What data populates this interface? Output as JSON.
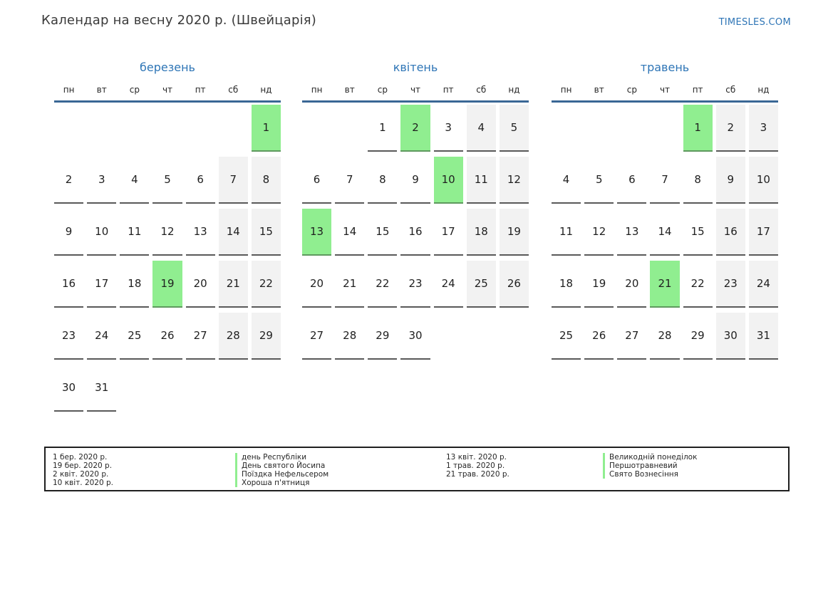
{
  "page": {
    "title": "Календар на весну 2020 р. (Швейцарія)",
    "brand": "TIMESLES.COM"
  },
  "weekdays": [
    "пн",
    "вт",
    "ср",
    "чт",
    "пт",
    "сб",
    "нд"
  ],
  "months": [
    {
      "name": "березень",
      "weeks": [
        [
          null,
          null,
          null,
          null,
          null,
          null,
          1
        ],
        [
          2,
          3,
          4,
          5,
          6,
          7,
          8
        ],
        [
          9,
          10,
          11,
          12,
          13,
          14,
          15
        ],
        [
          16,
          17,
          18,
          19,
          20,
          21,
          22
        ],
        [
          23,
          24,
          25,
          26,
          27,
          28,
          29
        ],
        [
          30,
          31,
          null,
          null,
          null,
          null,
          null
        ]
      ],
      "holidays": [
        1,
        19
      ]
    },
    {
      "name": "квітень",
      "weeks": [
        [
          null,
          null,
          1,
          2,
          3,
          4,
          5
        ],
        [
          6,
          7,
          8,
          9,
          10,
          11,
          12
        ],
        [
          13,
          14,
          15,
          16,
          17,
          18,
          19
        ],
        [
          20,
          21,
          22,
          23,
          24,
          25,
          26
        ],
        [
          27,
          28,
          29,
          30,
          null,
          null,
          null
        ]
      ],
      "holidays": [
        2,
        10,
        13
      ]
    },
    {
      "name": "травень",
      "weeks": [
        [
          null,
          null,
          null,
          null,
          1,
          2,
          3
        ],
        [
          4,
          5,
          6,
          7,
          8,
          9,
          10
        ],
        [
          11,
          12,
          13,
          14,
          15,
          16,
          17
        ],
        [
          18,
          19,
          20,
          21,
          22,
          23,
          24
        ],
        [
          25,
          26,
          27,
          28,
          29,
          30,
          31
        ]
      ],
      "holidays": [
        1,
        21
      ]
    }
  ],
  "legend": {
    "left": [
      {
        "date": "1 бер. 2020 р.",
        "name": "день Республіки"
      },
      {
        "date": "19 бер. 2020 р.",
        "name": "День святого Йосипа"
      },
      {
        "date": "2 квіт. 2020 р.",
        "name": "Поїздка Нефельсером"
      },
      {
        "date": "10 квіт. 2020 р.",
        "name": "Хороша п'ятниця"
      }
    ],
    "right": [
      {
        "date": "13 квіт. 2020 р.",
        "name": "Великодній понеділок"
      },
      {
        "date": "1 трав. 2020 р.",
        "name": "Першотравневий"
      },
      {
        "date": "21 трав. 2020 р.",
        "name": "Свято Вознесіння"
      }
    ]
  },
  "colors": {
    "accent_blue": "#2e75b6",
    "header_line_blue": "#3a6795",
    "holiday_green": "#90ee90",
    "weekend_gray": "#f2f2f2",
    "cell_underline_gray": "#595959"
  }
}
